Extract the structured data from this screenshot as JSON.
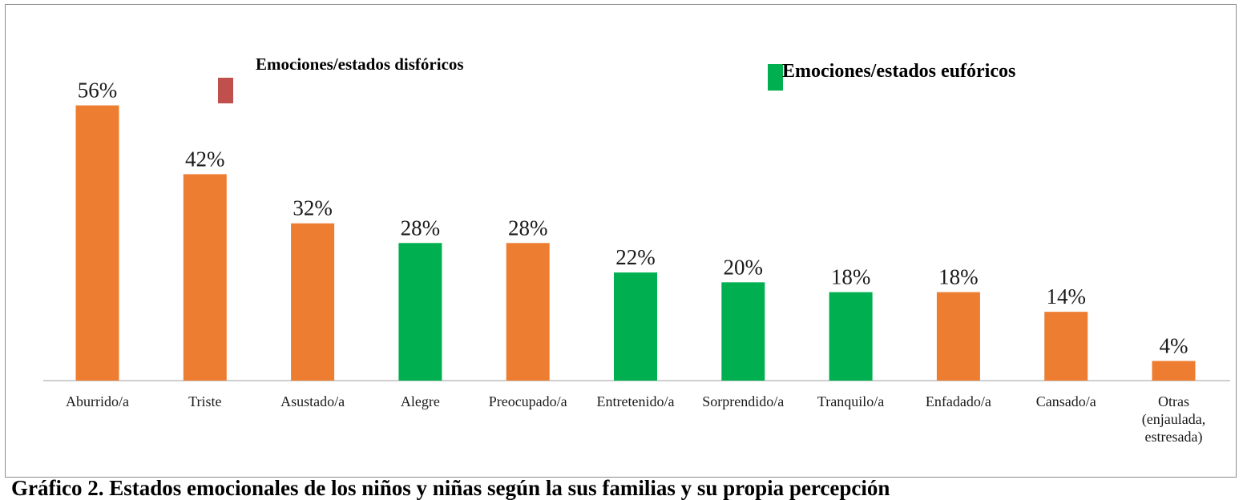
{
  "chart_data": {
    "type": "bar",
    "categories": [
      "Aburrido/a",
      "Triste",
      "Asustado/a",
      "Alegre",
      "Preocupado/a",
      "Entretenido/a",
      "Sorprendido/a",
      "Tranquilo/a",
      "Enfadado/a",
      "Cansado/a",
      "Otras (enjaulada, estresada)"
    ],
    "category_lines": [
      [
        "Aburrido/a"
      ],
      [
        "Triste"
      ],
      [
        "Asustado/a"
      ],
      [
        "Alegre"
      ],
      [
        "Preocupado/a"
      ],
      [
        "Entretenido/a"
      ],
      [
        "Sorprendido/a"
      ],
      [
        "Tranquilo/a"
      ],
      [
        "Enfadado/a"
      ],
      [
        "Cansado/a"
      ],
      [
        "Otras",
        "(enjaulada,",
        "estresada)"
      ]
    ],
    "values": [
      56,
      42,
      32,
      28,
      28,
      22,
      20,
      18,
      18,
      14,
      4
    ],
    "value_labels": [
      "56%",
      "42%",
      "32%",
      "28%",
      "28%",
      "22%",
      "20%",
      "18%",
      "18%",
      "14%",
      "4%"
    ],
    "groups": [
      "disforico",
      "disforico",
      "disforico",
      "euforico",
      "disforico",
      "euforico",
      "euforico",
      "euforico",
      "disforico",
      "disforico",
      "disforico"
    ],
    "group_colors": {
      "disforico": "#ed7d31",
      "euforico": "#00b050"
    },
    "ylim": [
      0,
      60
    ],
    "grid": false,
    "legend": [
      {
        "label": "Emociones/estados disfóricos",
        "color": "#c0504d"
      },
      {
        "label": "Emociones/estados eufóricos",
        "color": "#00b050"
      }
    ],
    "legend_placement": "top",
    "caption": "Gráfico 2. Estados emocionales de los niños y niñas según la sus familias y su propia percepción"
  }
}
